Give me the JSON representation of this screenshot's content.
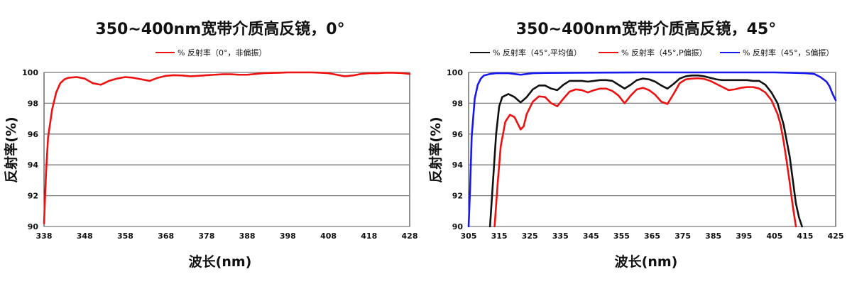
{
  "chart_data": [
    {
      "type": "line",
      "title": "350~400nm宽带介质高反镜，0°",
      "xlabel": "波长(nm)",
      "ylabel": "反射率(%)",
      "xlim": [
        338,
        428
      ],
      "ylim": [
        90,
        100
      ],
      "xticks": [
        "338",
        "348",
        "358",
        "368",
        "378",
        "388",
        "398",
        "408",
        "418",
        "428"
      ],
      "yticks": [
        "90",
        "92",
        "94",
        "96",
        "98",
        "100"
      ],
      "grid": "horizontal",
      "legend_position": "top-center",
      "series": [
        {
          "name": "% 反射率（0°，非偏振）",
          "color": "#ee1111",
          "x": [
            338,
            338.5,
            339,
            340,
            341,
            342,
            343,
            344,
            346,
            348,
            350,
            352,
            354,
            356,
            358,
            360,
            362,
            364,
            366,
            368,
            370,
            372,
            374,
            376,
            378,
            380,
            382,
            384,
            386,
            388,
            390,
            392,
            394,
            396,
            398,
            400,
            402,
            404,
            406,
            408,
            410,
            412,
            414,
            416,
            418,
            420,
            422,
            424,
            426,
            428
          ],
          "y": [
            90.2,
            93.5,
            95.8,
            97.6,
            98.7,
            99.3,
            99.55,
            99.65,
            99.7,
            99.6,
            99.3,
            99.2,
            99.45,
            99.6,
            99.7,
            99.65,
            99.55,
            99.45,
            99.65,
            99.78,
            99.82,
            99.8,
            99.75,
            99.78,
            99.82,
            99.85,
            99.88,
            99.88,
            99.85,
            99.85,
            99.9,
            99.95,
            99.97,
            99.98,
            100,
            100,
            100,
            100,
            99.98,
            99.95,
            99.85,
            99.75,
            99.8,
            99.9,
            99.95,
            99.95,
            99.98,
            99.98,
            99.96,
            99.9
          ]
        }
      ]
    },
    {
      "type": "line",
      "title": "350~400nm宽带介质高反镜，45°",
      "xlabel": "波长(nm)",
      "ylabel": "反射率(%)",
      "xlim": [
        305,
        425
      ],
      "ylim": [
        90,
        100
      ],
      "xticks": [
        "305",
        "315",
        "325",
        "335",
        "345",
        "355",
        "365",
        "375",
        "385",
        "395",
        "405",
        "415",
        "425"
      ],
      "yticks": [
        "90",
        "92",
        "94",
        "96",
        "98",
        "100"
      ],
      "grid": "horizontal",
      "legend_position": "top-center",
      "series": [
        {
          "name": "% 反射率（45°,平均值）",
          "color": "#111111",
          "x": [
            312,
            313,
            314,
            315,
            316,
            318,
            320,
            322,
            324,
            326,
            328,
            330,
            332,
            334,
            336,
            338,
            340,
            342,
            344,
            346,
            348,
            350,
            352,
            354,
            356,
            358,
            360,
            362,
            364,
            366,
            368,
            370,
            372,
            374,
            376,
            378,
            380,
            382,
            384,
            386,
            388,
            390,
            392,
            394,
            396,
            398,
            400,
            402,
            404,
            406,
            408,
            410,
            411,
            412,
            413,
            414
          ],
          "y": [
            90,
            93,
            96,
            97.8,
            98.4,
            98.6,
            98.4,
            98.05,
            98.4,
            98.9,
            99.15,
            99.15,
            98.95,
            98.85,
            99.2,
            99.45,
            99.45,
            99.45,
            99.4,
            99.45,
            99.5,
            99.5,
            99.45,
            99.2,
            98.95,
            99.2,
            99.5,
            99.6,
            99.55,
            99.4,
            99.15,
            98.95,
            99.25,
            99.6,
            99.75,
            99.8,
            99.8,
            99.75,
            99.65,
            99.55,
            99.5,
            99.5,
            99.5,
            99.5,
            99.5,
            99.45,
            99.45,
            99.2,
            98.7,
            98,
            96.6,
            94.5,
            93,
            91.5,
            90.6,
            90
          ]
        },
        {
          "name": "% 反射率（45°,P偏振）",
          "color": "#ee1111",
          "x": [
            313.5,
            314.5,
            315.5,
            317,
            318.5,
            320,
            321,
            322,
            323,
            324,
            326,
            328,
            330,
            332,
            334,
            336,
            338,
            340,
            342,
            344,
            346,
            348,
            350,
            352,
            354,
            356,
            358,
            360,
            362,
            364,
            366,
            368,
            370,
            372,
            374,
            376,
            378,
            380,
            382,
            384,
            386,
            388,
            390,
            392,
            394,
            396,
            398,
            400,
            402,
            404,
            406,
            407,
            408,
            409,
            410,
            411,
            412
          ],
          "y": [
            90,
            92.8,
            95.2,
            96.8,
            97.25,
            97.1,
            96.7,
            96.3,
            96.5,
            97.3,
            98.1,
            98.45,
            98.4,
            98,
            97.8,
            98.3,
            98.75,
            98.9,
            98.85,
            98.7,
            98.85,
            98.95,
            98.95,
            98.8,
            98.5,
            98,
            98.5,
            98.9,
            99,
            98.85,
            98.55,
            98.1,
            97.95,
            98.6,
            99.3,
            99.55,
            99.6,
            99.62,
            99.58,
            99.45,
            99.25,
            99.05,
            98.85,
            98.9,
            99,
            99.05,
            99.05,
            98.95,
            98.7,
            98.2,
            97.3,
            96.6,
            95.5,
            94.2,
            92.8,
            91.3,
            90
          ]
        },
        {
          "name": "% 反射率（45°，S偏振）",
          "color": "#1818ee",
          "x": [
            305,
            305.5,
            306,
            307,
            308,
            309,
            310,
            312,
            314,
            316,
            318,
            320,
            322,
            324,
            326,
            330,
            340,
            350,
            360,
            370,
            380,
            390,
            400,
            405,
            410,
            415,
            418,
            420,
            422,
            423,
            424,
            425
          ],
          "y": [
            90,
            92.5,
            95.8,
            98.3,
            99.2,
            99.6,
            99.8,
            99.9,
            99.95,
            99.95,
            99.95,
            99.9,
            99.85,
            99.9,
            99.95,
            99.97,
            99.98,
            99.99,
            100,
            100,
            100,
            100,
            100,
            100,
            99.98,
            99.95,
            99.9,
            99.7,
            99.4,
            99.1,
            98.6,
            98.2
          ]
        }
      ]
    }
  ]
}
